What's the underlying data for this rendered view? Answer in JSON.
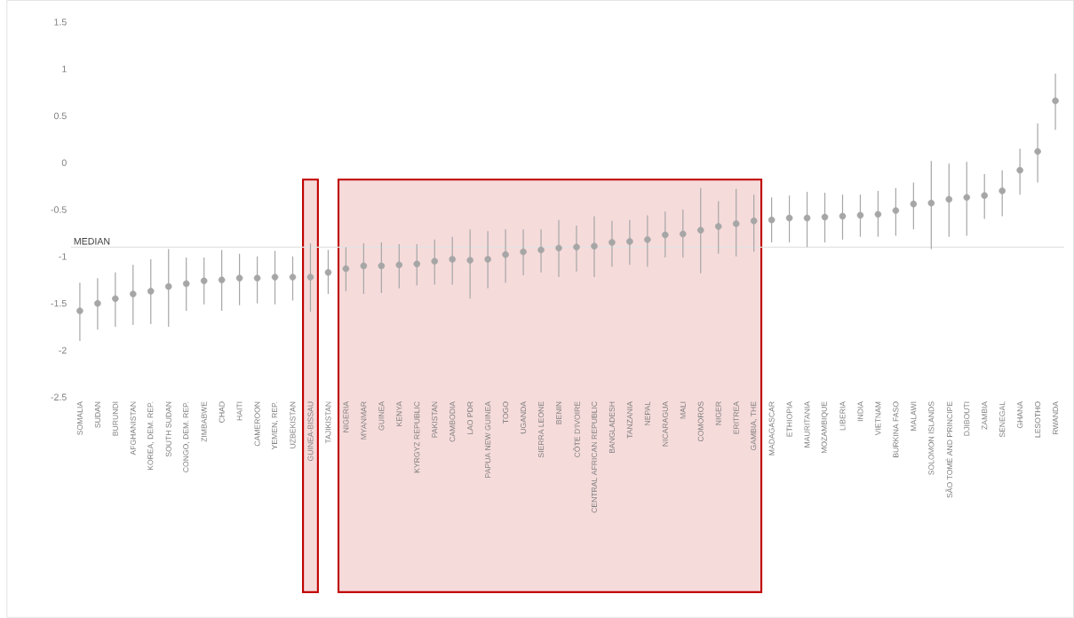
{
  "chart_data": {
    "type": "scatter",
    "categories": [
      "SOMALIA",
      "SUDAN",
      "BURUNDI",
      "AFGHANISTAN",
      "KOREA, DEM. REP.",
      "SOUTH SUDAN",
      "CONGO, DEM. REP.",
      "ZIMBABWE",
      "CHAD",
      "HAITI",
      "CAMEROON",
      "YEMEN, REP.",
      "UZBEKISTAN",
      "GUINEA-BISSAU",
      "TAJIKISTAN",
      "NIGERIA",
      "MYANMAR",
      "GUINEA",
      "KENYA",
      "KYRGYZ REPUBLIC",
      "PAKISTAN",
      "CAMBODIA",
      "LAO PDR",
      "PAPUA NEW GUINEA",
      "TOGO",
      "UGANDA",
      "SIERRA LEONE",
      "BENIN",
      "CÔTE D'IVOIRE",
      "CENTRAL AFRICAN REPUBLIC",
      "BANGLADESH",
      "TANZANIA",
      "NEPAL",
      "NICARAGUA",
      "MALI",
      "COMOROS",
      "NIGER",
      "ERITREA",
      "GAMBIA, THE",
      "MADAGASCAR",
      "ETHIOPIA",
      "MAURITANIA",
      "MOZAMBIQUE",
      "LIBERIA",
      "INDIA",
      "VIETNAM",
      "BURKINA FASO",
      "MALAWI",
      "SOLOMON ISLANDS",
      "SÃO TOMÉ AND PRINCIPE",
      "DJIBOUTI",
      "ZAMBIA",
      "SENEGAL",
      "GHANA",
      "LESOTHO",
      "RWANDA"
    ],
    "values": [
      -1.58,
      -1.5,
      -1.45,
      -1.4,
      -1.37,
      -1.32,
      -1.29,
      -1.26,
      -1.25,
      -1.23,
      -1.23,
      -1.22,
      -1.22,
      -1.22,
      -1.17,
      -1.13,
      -1.1,
      -1.1,
      -1.09,
      -1.08,
      -1.05,
      -1.03,
      -1.04,
      -1.03,
      -0.98,
      -0.95,
      -0.93,
      -0.91,
      -0.9,
      -0.89,
      -0.85,
      -0.84,
      -0.82,
      -0.77,
      -0.76,
      -0.72,
      -0.68,
      -0.65,
      -0.62,
      -0.61,
      -0.59,
      -0.59,
      -0.58,
      -0.57,
      -0.56,
      -0.55,
      -0.51,
      -0.44,
      -0.43,
      -0.39,
      -0.37,
      -0.35,
      -0.3,
      -0.08,
      0.12,
      0.66
    ],
    "errors": [
      [
        -1.9,
        -1.28
      ],
      [
        -1.78,
        -1.23
      ],
      [
        -1.75,
        -1.17
      ],
      [
        -1.73,
        -1.09
      ],
      [
        -1.72,
        -1.03
      ],
      [
        -1.75,
        -0.92
      ],
      [
        -1.58,
        -1.01
      ],
      [
        -1.51,
        -1.01
      ],
      [
        -1.58,
        -0.93
      ],
      [
        -1.52,
        -0.97
      ],
      [
        -1.5,
        -1.0
      ],
      [
        -1.51,
        -0.94
      ],
      [
        -1.47,
        -1.0
      ],
      [
        -1.59,
        -0.86
      ],
      [
        -1.4,
        -0.93
      ],
      [
        -1.37,
        -0.9
      ],
      [
        -1.4,
        -0.86
      ],
      [
        -1.39,
        -0.85
      ],
      [
        -1.34,
        -0.87
      ],
      [
        -1.31,
        -0.87
      ],
      [
        -1.3,
        -0.82
      ],
      [
        -1.3,
        -0.79
      ],
      [
        -1.45,
        -0.71
      ],
      [
        -1.34,
        -0.73
      ],
      [
        -1.28,
        -0.71
      ],
      [
        -1.2,
        -0.71
      ],
      [
        -1.17,
        -0.71
      ],
      [
        -1.22,
        -0.61
      ],
      [
        -1.16,
        -0.67
      ],
      [
        -1.22,
        -0.57
      ],
      [
        -1.11,
        -0.62
      ],
      [
        -1.09,
        -0.61
      ],
      [
        -1.11,
        -0.56
      ],
      [
        -1.01,
        -0.52
      ],
      [
        -1.01,
        -0.5
      ],
      [
        -1.18,
        -0.27
      ],
      [
        -0.97,
        -0.41
      ],
      [
        -1.0,
        -0.28
      ],
      [
        -0.95,
        -0.34
      ],
      [
        -0.85,
        -0.37
      ],
      [
        -0.85,
        -0.35
      ],
      [
        -0.9,
        -0.31
      ],
      [
        -0.85,
        -0.32
      ],
      [
        -0.82,
        -0.34
      ],
      [
        -0.79,
        -0.34
      ],
      [
        -0.79,
        -0.3
      ],
      [
        -0.78,
        -0.27
      ],
      [
        -0.71,
        -0.21
      ],
      [
        -0.92,
        0.02
      ],
      [
        -0.79,
        -0.01
      ],
      [
        -0.78,
        0.01
      ],
      [
        -0.6,
        -0.12
      ],
      [
        -0.57,
        -0.08
      ],
      [
        -0.34,
        0.15
      ],
      [
        -0.21,
        0.42
      ],
      [
        0.35,
        0.95
      ]
    ],
    "color": "#a6a6a6",
    "ylim": [
      -2.5,
      1.5
    ],
    "yticks": [
      -2.5,
      -2,
      -1.5,
      -1,
      -0.5,
      0,
      0.5,
      1,
      1.5
    ],
    "ref_lines": [
      {
        "axis": "y",
        "value": -0.9,
        "label": "MEDIAN",
        "color": "#e3e3e3"
      }
    ],
    "bands": [
      {
        "axis": "x",
        "from": "GUINEA-BISSAU",
        "to": "GUINEA-BISSAU",
        "color": "#c00000"
      },
      {
        "axis": "x",
        "from": "NIGERIA",
        "to": "GAMBIA, THE",
        "color": "#c00000"
      }
    ]
  }
}
